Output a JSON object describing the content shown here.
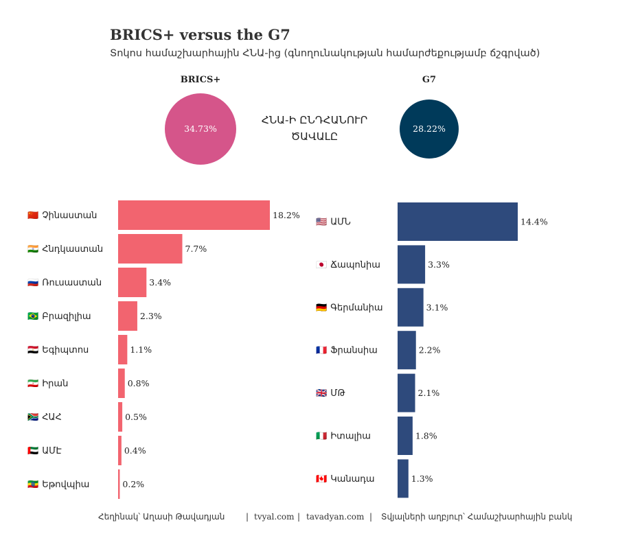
{
  "header": {
    "title": "BRICS+ versus the G7",
    "subtitle": "Տոկոս համաշխարհային ՀՆԱ-ից (գնողունակության համարժեքությամբ ճշգրված)"
  },
  "summary": {
    "center_label_line1": "ՀՆԱ-Ի ԸՆԴՀԱՆՈՒՐ",
    "center_label_line2": "ԾԱՎԱԼԸ",
    "brics": {
      "label": "BRICS+",
      "value_text": "34.73%",
      "value": 34.73,
      "color": "#d5558a"
    },
    "g7": {
      "label": "G7",
      "value_text": "28.22%",
      "value": 28.22,
      "color": "#003a5a"
    }
  },
  "footer": {
    "author": "Հեղինակ՝ Աղասի Թավադյան",
    "sep1": "|",
    "site1": "tvyal.com",
    "sep2": "|",
    "site2": "tavadyan.com",
    "sep3": "|",
    "source": "Տվյալների աղբյուր՝ Համաշխարհային բանկ"
  },
  "chart_data": [
    {
      "type": "bar",
      "orientation": "horizontal",
      "color": "#f2646f",
      "categories": [
        {
          "flag": "🇨🇳",
          "name": "Չինաստան"
        },
        {
          "flag": "🇮🇳",
          "name": "Հնդկաստան"
        },
        {
          "flag": "🇷🇺",
          "name": "Ռուսաստան"
        },
        {
          "flag": "🇧🇷",
          "name": "Բրազիլիա"
        },
        {
          "flag": "🇪🇬",
          "name": "Եգիպտոս"
        },
        {
          "flag": "🇮🇷",
          "name": "Իրան"
        },
        {
          "flag": "🇿🇦",
          "name": "ՀԱՀ"
        },
        {
          "flag": "🇦🇪",
          "name": "ԱՄԷ"
        },
        {
          "flag": "🇪🇹",
          "name": "Եթովպիա"
        }
      ],
      "values": [
        18.2,
        7.7,
        3.4,
        2.3,
        1.1,
        0.8,
        0.5,
        0.4,
        0.2
      ],
      "labels": [
        "18.2%",
        "7.7%",
        "3.4%",
        "2.3%",
        "1.1%",
        "0.8%",
        "0.5%",
        "0.4%",
        "0.2%"
      ]
    },
    {
      "type": "bar",
      "orientation": "horizontal",
      "color": "#2e4a7c",
      "categories": [
        {
          "flag": "🇺🇸",
          "name": "ԱՄՆ"
        },
        {
          "flag": "🇯🇵",
          "name": "Ճապոնիա"
        },
        {
          "flag": "🇩🇪",
          "name": "Գերմանիա"
        },
        {
          "flag": "🇫🇷",
          "name": "Ֆրանսիա"
        },
        {
          "flag": "🇬🇧",
          "name": "ՄԹ"
        },
        {
          "flag": "🇮🇹",
          "name": "Իտալիա"
        },
        {
          "flag": "🇨🇦",
          "name": "Կանադա"
        }
      ],
      "values": [
        14.4,
        3.3,
        3.1,
        2.2,
        2.1,
        1.8,
        1.3
      ],
      "labels": [
        "14.4%",
        "3.3%",
        "3.1%",
        "2.2%",
        "2.1%",
        "1.8%",
        "1.3%"
      ]
    }
  ]
}
